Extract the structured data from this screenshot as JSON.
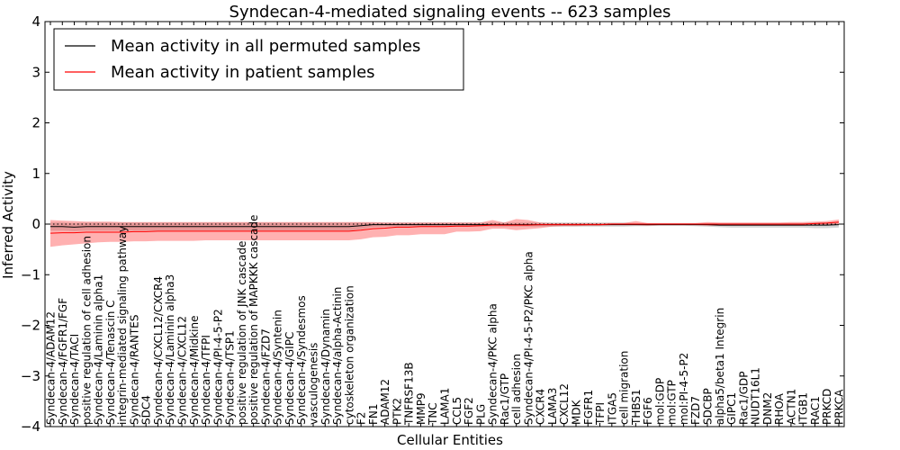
{
  "chart_data": {
    "type": "line",
    "title": "Syndecan-4-mediated signaling events -- 623 samples",
    "xlabel": "Cellular Entities",
    "ylabel": "Inferred Activity",
    "ylim": [
      -4,
      4
    ],
    "yticks": [
      -4,
      -3,
      -2,
      -1,
      0,
      1,
      2,
      3,
      4
    ],
    "grid": false,
    "legend_position": "top-left",
    "categories": [
      "Syndecan-4/ADAM12",
      "Syndecan-4/FGFR1/FGF",
      "Syndecan-4/TACI",
      "positive regulation of cell adhesion",
      "Syndecan-4/Laminin alpha1",
      "Syndecan-4/Tenascin C",
      "integrin-mediated signaling pathway",
      "Syndecan-4/RANTES",
      "SDC4",
      "Syndecan-4/CXCL12/CXCR4",
      "Syndecan-4/Laminin alpha3",
      "Syndecan-4/CXCL12",
      "Syndecan-4/Midkine",
      "Syndecan-4/TFPI",
      "Syndecan-4/PI-4-5-P2",
      "Syndecan-4/TSP1",
      "positive regulation of JNK cascade",
      "positive regulation of MAPKKK cascade",
      "Syndecan-4/FZD7",
      "Syndecan-4/Syntenin",
      "Syndecan-4/GIPC",
      "Syndecan-4/Syndesmos",
      "vasculogenesis",
      "Syndecan-4/Dynamin",
      "Syndecan-4/alpha-Actinin",
      "cytoskeleton organization",
      "F2",
      "FN1",
      "ADAM12",
      "PTK2",
      "TNFRSF13B",
      "MMP9",
      "TNC",
      "LAMA1",
      "CCL5",
      "FGF2",
      "PLG",
      "Syndecan-4/PKC alpha",
      "Rac1/GTP",
      "cell adhesion",
      "Syndecan-4/PI-4-5-P2/PKC alpha",
      "CXCR4",
      "LAMA3",
      "CXCL12",
      "MDK",
      "FGFR1",
      "TFPI",
      "ITGA5",
      "cell migration",
      "THBS1",
      "FGF6",
      "mol:GDP",
      "mol:GTP",
      "mol:PI-4-5-P2",
      "FZD7",
      "SDCBP",
      "alpha5/beta1 Integrin",
      "GIPC1",
      "Rac1/GDP",
      "NUDT16L1",
      "DNM2",
      "RHOA",
      "ACTN1",
      "ITGB1",
      "RAC1",
      "PRKCD",
      "PRKCA"
    ],
    "series": [
      {
        "name": "Mean activity in all permuted samples",
        "color": "#000000",
        "values": [
          -0.05,
          -0.05,
          -0.06,
          -0.05,
          -0.05,
          -0.05,
          -0.05,
          -0.05,
          -0.05,
          -0.05,
          -0.05,
          -0.05,
          -0.05,
          -0.05,
          -0.05,
          -0.05,
          -0.05,
          -0.05,
          -0.05,
          -0.05,
          -0.05,
          -0.05,
          -0.05,
          -0.05,
          -0.05,
          -0.05,
          -0.03,
          -0.01,
          -0.01,
          -0.01,
          -0.01,
          -0.01,
          -0.01,
          -0.01,
          -0.01,
          -0.01,
          -0.01,
          -0.01,
          -0.01,
          -0.01,
          -0.01,
          -0.01,
          -0.01,
          -0.01,
          -0.01,
          -0.01,
          -0.01,
          -0.01,
          -0.01,
          -0.01,
          -0.01,
          -0.01,
          -0.01,
          -0.01,
          -0.01,
          -0.01,
          -0.02,
          -0.02,
          -0.02,
          -0.02,
          -0.02,
          -0.02,
          -0.02,
          -0.02,
          -0.02,
          -0.02,
          -0.01
        ],
        "band_lower": [
          -0.13,
          -0.13,
          -0.14,
          -0.13,
          -0.13,
          -0.13,
          -0.13,
          -0.13,
          -0.13,
          -0.13,
          -0.13,
          -0.13,
          -0.13,
          -0.13,
          -0.13,
          -0.13,
          -0.13,
          -0.13,
          -0.13,
          -0.13,
          -0.13,
          -0.13,
          -0.13,
          -0.13,
          -0.13,
          -0.13,
          -0.1,
          -0.06,
          -0.05,
          -0.05,
          -0.05,
          -0.05,
          -0.05,
          -0.05,
          -0.05,
          -0.05,
          -0.05,
          -0.05,
          -0.05,
          -0.05,
          -0.05,
          -0.05,
          -0.05,
          -0.05,
          -0.05,
          -0.05,
          -0.05,
          -0.05,
          -0.05,
          -0.04,
          -0.04,
          -0.03,
          -0.03,
          -0.03,
          -0.04,
          -0.05,
          -0.06,
          -0.07,
          -0.07,
          -0.07,
          -0.07,
          -0.07,
          -0.07,
          -0.07,
          -0.08,
          -0.08,
          -0.07
        ],
        "band_upper": [
          0.03,
          0.03,
          0.02,
          0.03,
          0.03,
          0.03,
          0.03,
          0.03,
          0.03,
          0.03,
          0.03,
          0.03,
          0.03,
          0.03,
          0.03,
          0.03,
          0.03,
          0.03,
          0.03,
          0.03,
          0.03,
          0.03,
          0.03,
          0.03,
          0.03,
          0.03,
          0.03,
          0.03,
          0.03,
          0.03,
          0.03,
          0.03,
          0.03,
          0.03,
          0.03,
          0.03,
          0.03,
          0.03,
          0.03,
          0.03,
          0.03,
          0.03,
          0.03,
          0.03,
          0.03,
          0.03,
          0.03,
          0.03,
          0.03,
          0.02,
          0.02,
          0.02,
          0.02,
          0.02,
          0.02,
          0.02,
          0.02,
          0.02,
          0.02,
          0.02,
          0.02,
          0.02,
          0.02,
          0.02,
          0.03,
          0.03,
          0.04
        ]
      },
      {
        "name": "Mean activity in patient samples",
        "color": "#ff0000",
        "values": [
          -0.18,
          -0.17,
          -0.17,
          -0.16,
          -0.16,
          -0.16,
          -0.16,
          -0.15,
          -0.15,
          -0.14,
          -0.14,
          -0.14,
          -0.14,
          -0.14,
          -0.14,
          -0.14,
          -0.14,
          -0.14,
          -0.14,
          -0.14,
          -0.14,
          -0.14,
          -0.14,
          -0.14,
          -0.14,
          -0.14,
          -0.12,
          -0.09,
          -0.08,
          -0.06,
          -0.06,
          -0.05,
          -0.05,
          -0.05,
          -0.04,
          -0.04,
          -0.03,
          -0.02,
          -0.02,
          -0.02,
          -0.02,
          -0.01,
          -0.01,
          -0.01,
          -0.01,
          -0.01,
          -0.01,
          0.0,
          0.0,
          0.0,
          0.0,
          0.0,
          0.0,
          0.0,
          0.0,
          0.0,
          0.0,
          0.0,
          0.0,
          0.0,
          0.0,
          0.0,
          0.0,
          0.0,
          0.01,
          0.02,
          0.04
        ],
        "band_lower": [
          -0.45,
          -0.42,
          -0.4,
          -0.38,
          -0.36,
          -0.35,
          -0.35,
          -0.34,
          -0.34,
          -0.33,
          -0.33,
          -0.33,
          -0.33,
          -0.32,
          -0.32,
          -0.32,
          -0.32,
          -0.32,
          -0.32,
          -0.32,
          -0.32,
          -0.32,
          -0.32,
          -0.32,
          -0.32,
          -0.32,
          -0.3,
          -0.26,
          -0.25,
          -0.22,
          -0.22,
          -0.2,
          -0.2,
          -0.2,
          -0.15,
          -0.15,
          -0.14,
          -0.09,
          -0.09,
          -0.12,
          -0.1,
          -0.08,
          -0.05,
          -0.04,
          -0.04,
          -0.03,
          -0.03,
          -0.02,
          -0.02,
          -0.02,
          -0.03,
          -0.02,
          -0.02,
          -0.02,
          -0.02,
          -0.03,
          -0.03,
          -0.03,
          -0.03,
          -0.03,
          -0.03,
          -0.03,
          -0.03,
          -0.03,
          -0.02,
          -0.01,
          0.0
        ],
        "band_upper": [
          0.08,
          0.07,
          0.06,
          0.05,
          0.05,
          0.05,
          0.04,
          0.04,
          0.04,
          0.04,
          0.04,
          0.04,
          0.04,
          0.04,
          0.04,
          0.04,
          0.04,
          0.04,
          0.04,
          0.04,
          0.04,
          0.04,
          0.04,
          0.04,
          0.04,
          0.04,
          0.04,
          0.04,
          0.03,
          0.03,
          0.03,
          0.03,
          0.03,
          0.03,
          0.03,
          0.03,
          0.03,
          0.08,
          0.03,
          0.1,
          0.08,
          0.03,
          0.02,
          0.02,
          0.02,
          0.02,
          0.02,
          0.02,
          0.02,
          0.06,
          0.02,
          0.02,
          0.02,
          0.02,
          0.02,
          0.04,
          0.03,
          0.03,
          0.03,
          0.03,
          0.03,
          0.03,
          0.04,
          0.04,
          0.05,
          0.06,
          0.09
        ]
      }
    ],
    "reference_line": {
      "y": 0,
      "style": "dotted"
    }
  }
}
